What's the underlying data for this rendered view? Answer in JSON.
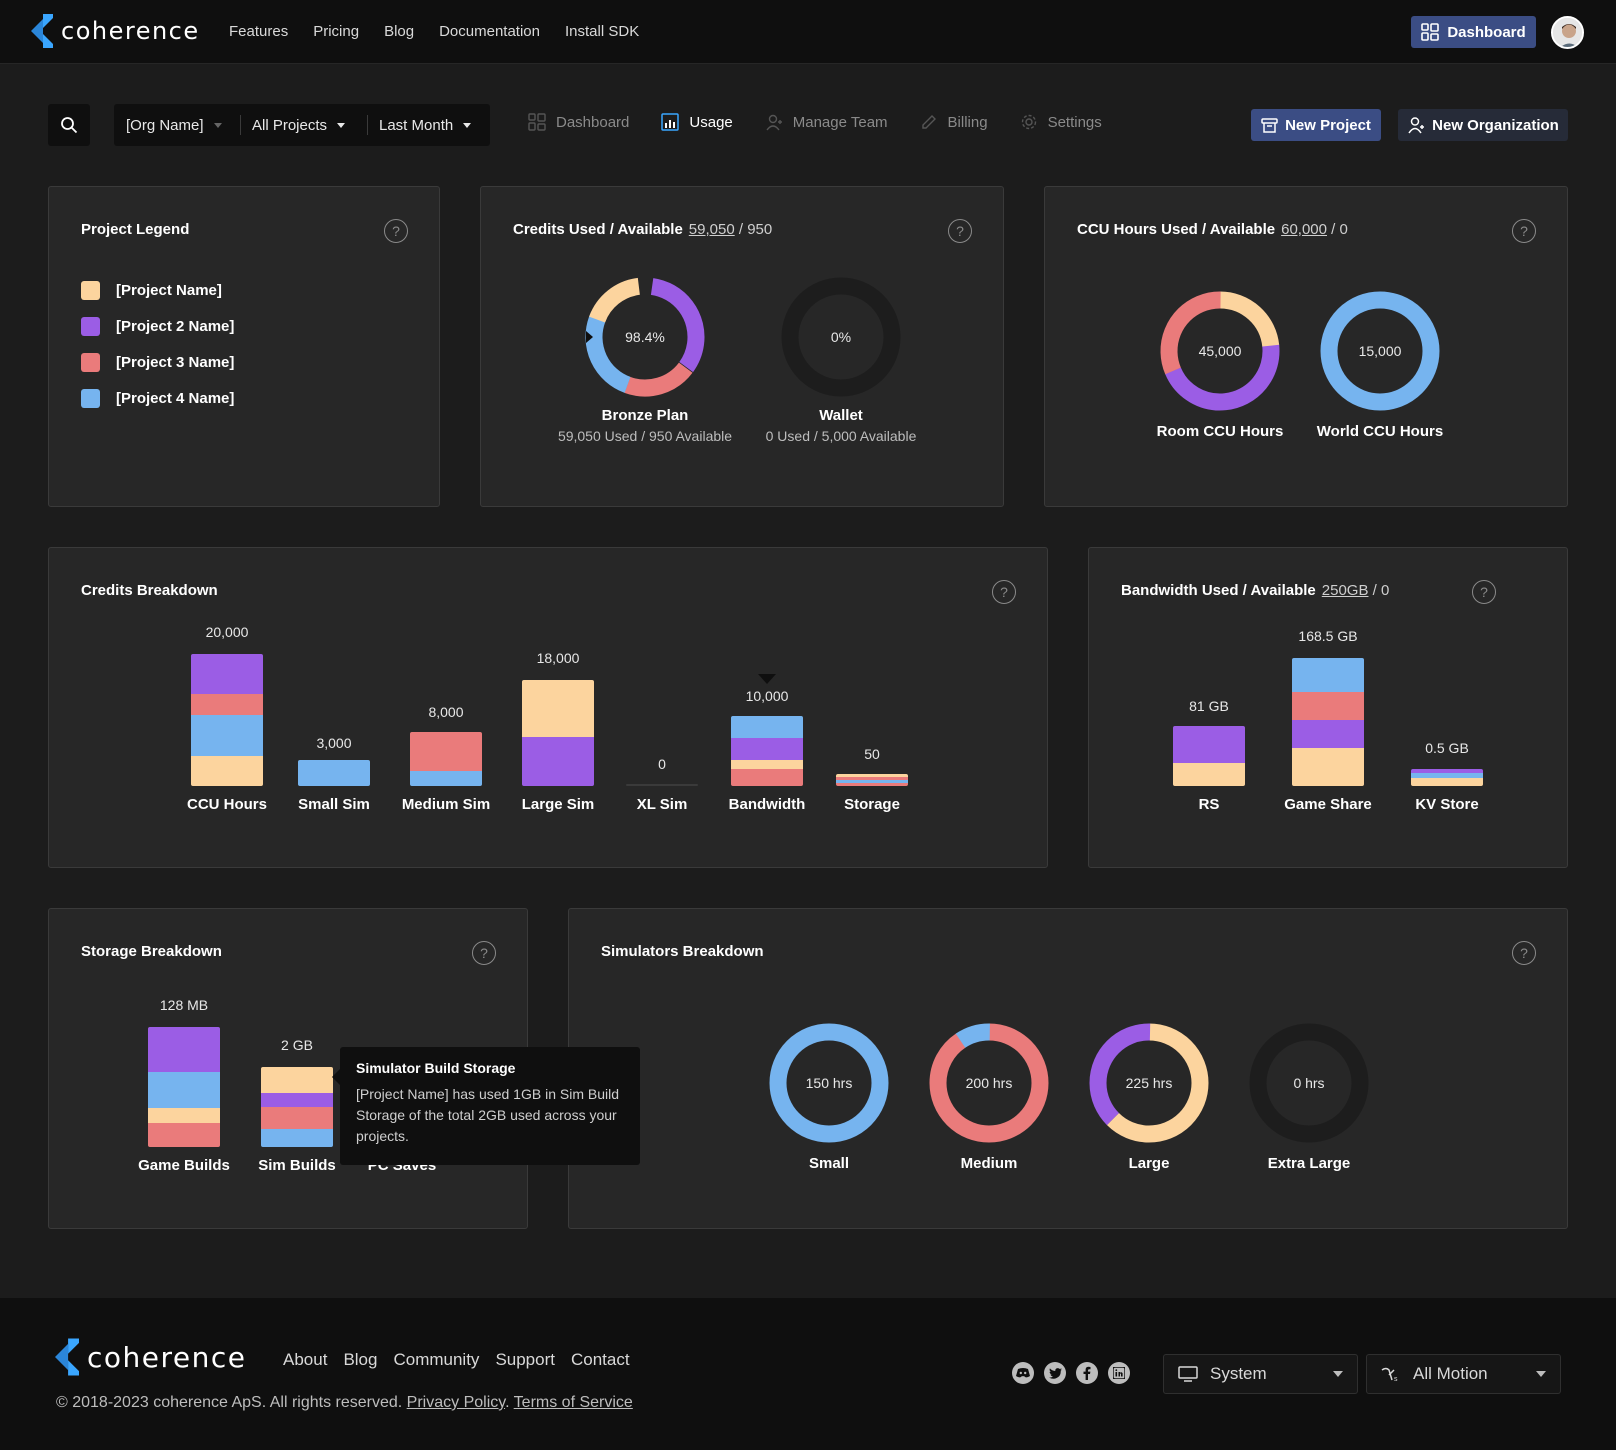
{
  "brand": {
    "name": "coherence",
    "accent": "#3aa6ff",
    "button_color": "#3b4d84"
  },
  "topnav": {
    "items": [
      "Features",
      "Pricing",
      "Blog",
      "Documentation",
      "Install SDK"
    ],
    "dashboard_label": "Dashboard"
  },
  "toolbar": {
    "org": "[Org Name]",
    "projects": "All Projects",
    "period": "Last Month",
    "tabs": [
      "Dashboard",
      "Usage",
      "Manage Team",
      "Billing",
      "Settings"
    ],
    "active_tab": "Usage",
    "new_project": "New Project",
    "new_org": "New Organization"
  },
  "colors": {
    "p1": "#fcd49e",
    "p2": "#9b5de5",
    "p3": "#ea7b7b",
    "p4": "#76b4ef",
    "empty": "#1d1d1d"
  },
  "legend": {
    "title": "Project Legend",
    "items": [
      "[Project Name]",
      "[Project 2 Name]",
      "[Project 3 Name]",
      "[Project 4 Name]"
    ]
  },
  "credits": {
    "title": "Credits Used / Available",
    "used": "59,050",
    "rest": "/ 950",
    "donuts": [
      {
        "center": "98.4%",
        "label": "Bronze Plan",
        "sub": "59,050 Used / 950 Available"
      },
      {
        "center": "0%",
        "label": "Wallet",
        "sub": "0 Used / 5,000 Available"
      }
    ]
  },
  "ccu": {
    "title": "CCU Hours Used / Available",
    "used": "60,000",
    "rest": "/ 0",
    "donuts": [
      {
        "center": "45,000",
        "label": "Room CCU Hours"
      },
      {
        "center": "15,000",
        "label": "World CCU Hours"
      }
    ]
  },
  "credits_breakdown": {
    "title": "Credits Breakdown",
    "bars": [
      {
        "label": "CCU Hours",
        "value": "20,000"
      },
      {
        "label": "Small Sim",
        "value": "3,000"
      },
      {
        "label": "Medium Sim",
        "value": "8,000"
      },
      {
        "label": "Large Sim",
        "value": "18,000"
      },
      {
        "label": "XL Sim",
        "value": "0"
      },
      {
        "label": "Bandwidth",
        "value": "10,000"
      },
      {
        "label": "Storage",
        "value": "50"
      }
    ]
  },
  "bandwidth": {
    "title": "Bandwidth Used / Available",
    "used": "250GB",
    "rest": "/ 0",
    "bars": [
      {
        "label": "RS",
        "value": "81 GB"
      },
      {
        "label": "Game Share",
        "value": "168.5 GB"
      },
      {
        "label": "KV Store",
        "value": "0.5 GB"
      }
    ]
  },
  "storage": {
    "title": "Storage Breakdown",
    "bars": [
      {
        "label": "Game Builds",
        "value": "128 MB"
      },
      {
        "label": "Sim Builds",
        "value": "2 GB"
      },
      {
        "label": "PC Saves",
        "value": ""
      }
    ],
    "tooltip_title": "Simulator Build Storage",
    "tooltip_body": "[Project Name] has used 1GB in Sim Build Storage of the total 2GB used across your projects."
  },
  "simulators": {
    "title": "Simulators Breakdown",
    "donuts": [
      {
        "center": "150 hrs",
        "label": "Small"
      },
      {
        "center": "200 hrs",
        "label": "Medium"
      },
      {
        "center": "225 hrs",
        "label": "Large"
      },
      {
        "center": "0 hrs",
        "label": "Extra Large"
      }
    ]
  },
  "footer": {
    "links": [
      "About",
      "Blog",
      "Community",
      "Support",
      "Contact"
    ],
    "copyright": "© 2018-2023 coherence ApS. All rights reserved.",
    "privacy": "Privacy Policy",
    "terms": "Terms of Service",
    "theme": "System",
    "motion": "All Motion"
  }
}
